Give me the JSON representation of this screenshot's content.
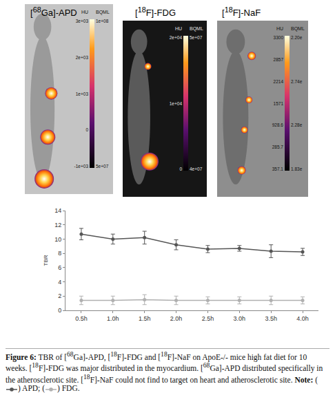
{
  "figure": {
    "panels": [
      {
        "label": "[68Ga]-APD",
        "headers": [
          "HU",
          "BQML"
        ],
        "hu_labels": [
          "3e+03",
          "2e+03",
          "1e+03",
          "0",
          "-1e+03"
        ],
        "bq_labels": [
          "1e+08",
          "5e+07"
        ]
      },
      {
        "label": "[18F]-FDG",
        "headers": [
          "HU",
          "BQML"
        ],
        "hu_labels": [
          "2e+04",
          "1e+04",
          "0"
        ],
        "bq_labels": [
          "5e+07",
          "4e+07"
        ]
      },
      {
        "label": "[18F]-NaF",
        "headers": [
          "HU",
          "BQML"
        ],
        "hu_labels": [
          "3300",
          "2857",
          "2214",
          "1571",
          "928.6",
          "285.7",
          "357.1"
        ],
        "bq_labels": [
          "2.20e",
          "2.74e",
          "2.28e",
          "1.83e"
        ]
      }
    ],
    "caption": {
      "label": "Figure 6:",
      "text": "TBR of [68Ga]-APD, [18F]-FDG and [18F]-NaF on ApoE-/- mice high fat diet for 10 weeks. [18F]-FDG was major distributed in the myocardium. [68Ga]-APD distributed specifically in the atherosclerotic site. [18F]-NaF could not find to target on heart and atherosclerotic site.",
      "note_label": "Note:",
      "note_entries": [
        {
          "prefix": "(",
          "suffix": ") APD;"
        },
        {
          "prefix": "(",
          "suffix": ") FDG."
        }
      ]
    }
  },
  "chart_data": {
    "type": "line",
    "y_label": "TBR",
    "categories": [
      "0.5h",
      "1.0h",
      "1.5h",
      "2.0h",
      "2.5h",
      "3.0h",
      "3.5h",
      "4.0h"
    ],
    "series": [
      {
        "name": "APD",
        "color": "#555555",
        "marker": "circle",
        "line_style": "solid",
        "values": [
          10.7,
          10.0,
          10.2,
          9.2,
          8.6,
          8.7,
          8.3,
          8.2
        ],
        "errors": [
          0.8,
          0.7,
          0.9,
          0.7,
          0.5,
          0.4,
          0.9,
          0.5
        ]
      },
      {
        "name": "FDG",
        "color": "#b0b0b0",
        "marker": "circle",
        "line_style": "solid",
        "values": [
          1.4,
          1.4,
          1.5,
          1.4,
          1.4,
          1.4,
          1.4,
          1.4
        ],
        "errors": [
          0.6,
          0.6,
          0.7,
          0.6,
          0.5,
          0.5,
          0.6,
          0.5
        ]
      }
    ],
    "ylim": [
      0,
      14
    ],
    "yticks": [
      0,
      2,
      4,
      6,
      8,
      10,
      12,
      14
    ],
    "grid": false
  }
}
